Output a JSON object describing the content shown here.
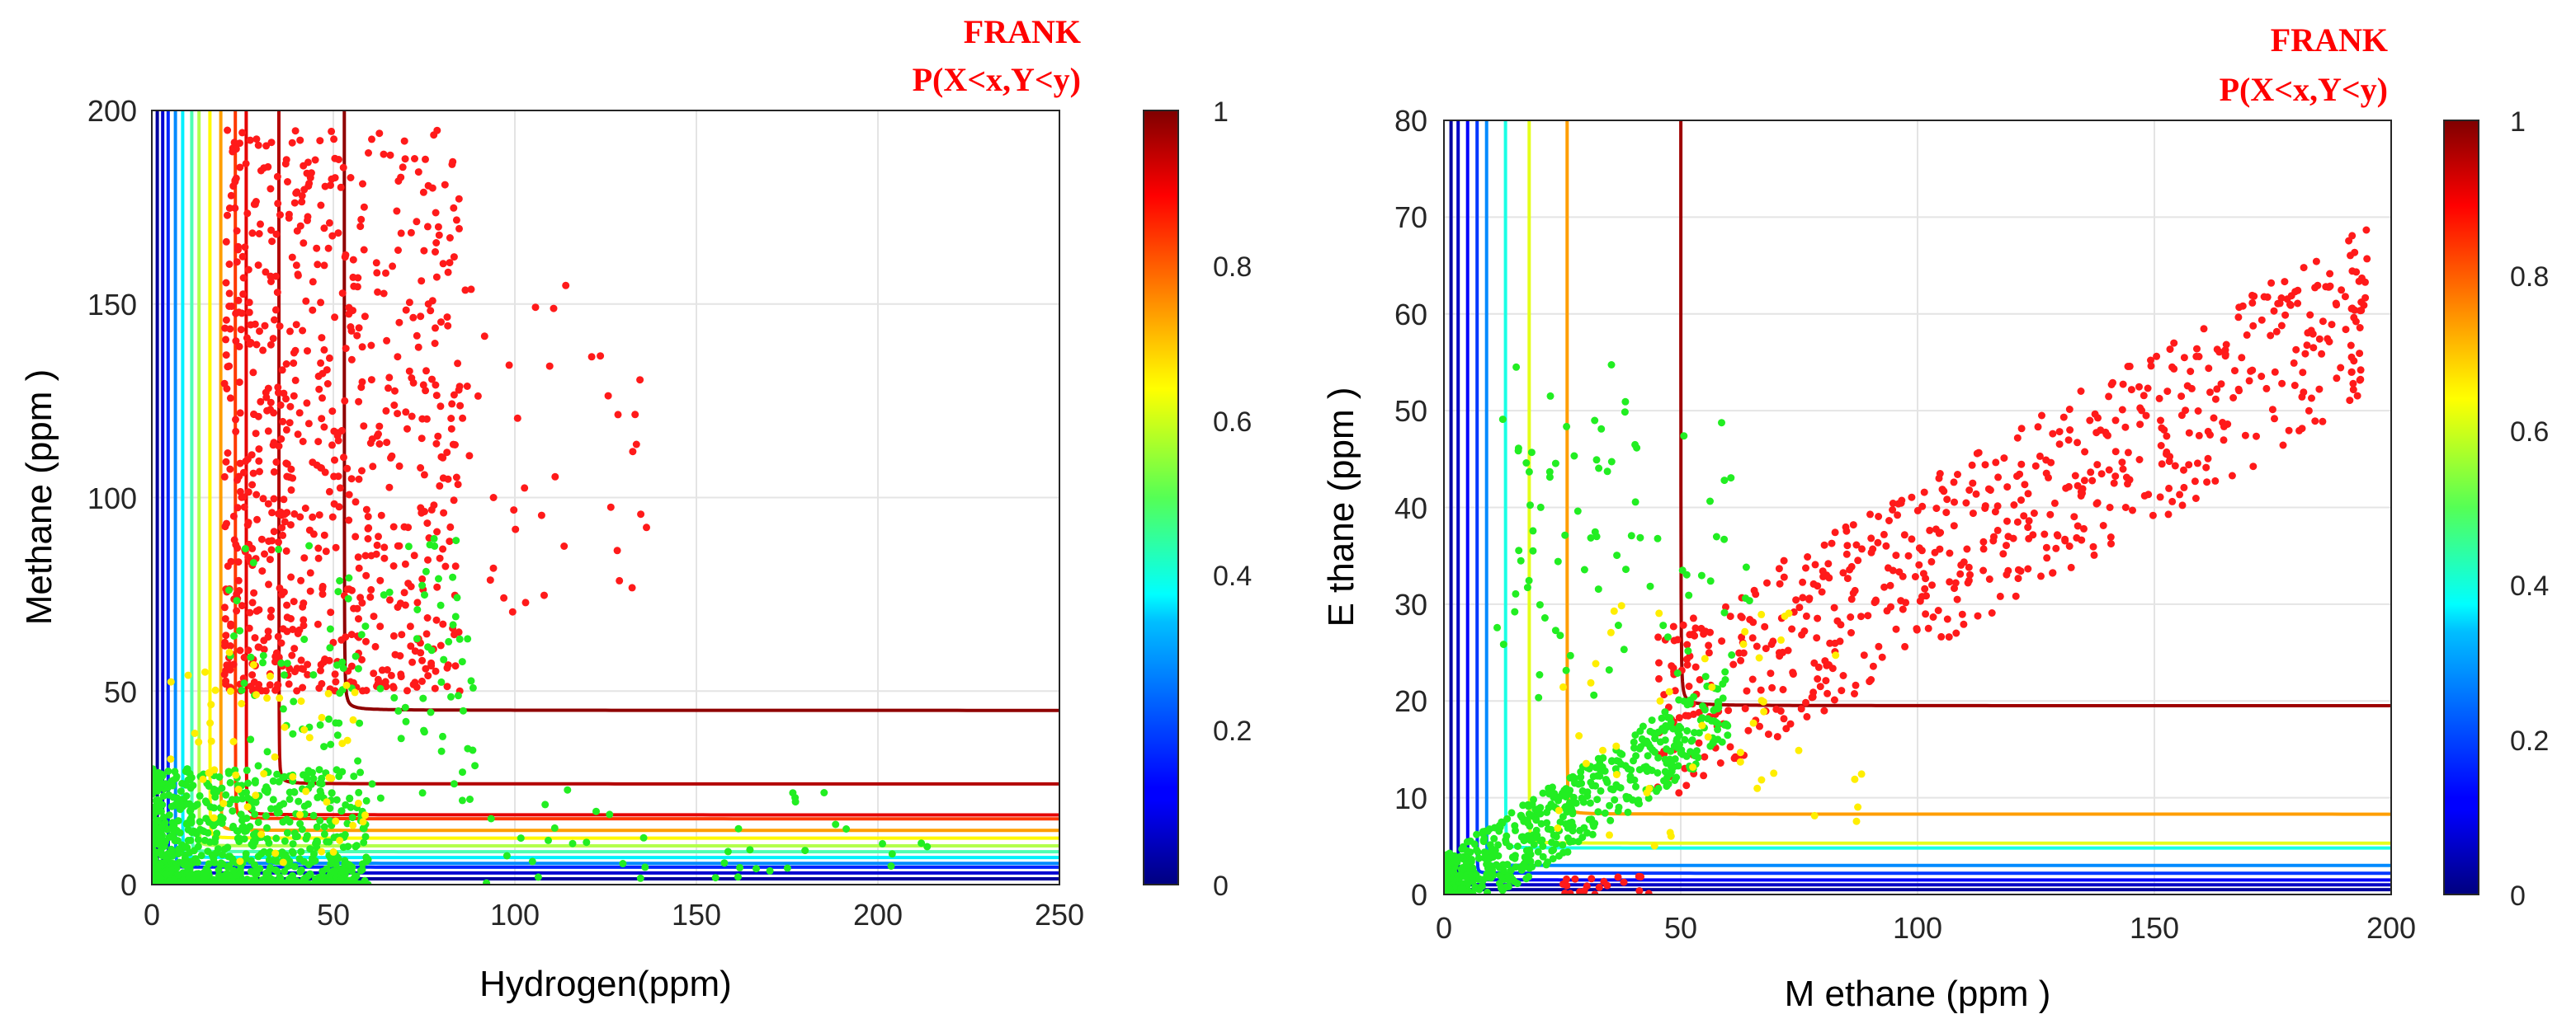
{
  "chart_data": [
    {
      "type": "scatter",
      "title": [
        "FRANK",
        "P(X<x,Y<y)"
      ],
      "xlabel": "Hydrogen(ppm)",
      "ylabel": "Methane (ppm )",
      "xlim": [
        0,
        250
      ],
      "ylim": [
        0,
        200
      ],
      "xticks": [
        "0",
        "50",
        "100",
        "150",
        "200",
        "250"
      ],
      "yticks": [
        "0",
        "50",
        "100",
        "150",
        "200"
      ],
      "grid": true,
      "colorbar": {
        "range": [
          0,
          1
        ],
        "ticks": [
          "0",
          "0.2",
          "0.4",
          "0.6",
          "0.8",
          "1"
        ],
        "colormap": "jet"
      },
      "contour_levels": [
        {
          "level": 0.03,
          "vx": 1.5,
          "hy": 1.5
        },
        {
          "level": 0.08,
          "vx": 3,
          "hy": 3
        },
        {
          "level": 0.16,
          "vx": 4.5,
          "hy": 4.5
        },
        {
          "level": 0.26,
          "vx": 6.5,
          "hy": 5.5
        },
        {
          "level": 0.36,
          "vx": 8.5,
          "hy": 7
        },
        {
          "level": 0.45,
          "vx": 11,
          "hy": 8.5
        },
        {
          "level": 0.55,
          "vx": 13,
          "hy": 10
        },
        {
          "level": 0.63,
          "vx": 16,
          "hy": 12
        },
        {
          "level": 0.72,
          "vx": 19,
          "hy": 14
        },
        {
          "level": 0.82,
          "vx": 23,
          "hy": 17
        },
        {
          "level": 0.9,
          "vx": 26,
          "hy": 18
        },
        {
          "level": 0.95,
          "vx": 35,
          "hy": 26
        },
        {
          "level": 0.985,
          "vx": 53,
          "hy": 45
        }
      ],
      "point_groups": [
        {
          "color": "#ff1a1a",
          "count": 750,
          "x": [
            20,
            85
          ],
          "y": [
            50,
            195
          ],
          "note": "red cluster"
        },
        {
          "color": "#ff1a1a",
          "count": 40,
          "x": [
            85,
            140
          ],
          "y": [
            70,
            155
          ],
          "note": "red sparse"
        },
        {
          "color": "#22ee22",
          "count": 900,
          "x": [
            0,
            60
          ],
          "y": [
            0,
            30
          ],
          "note": "green dense"
        },
        {
          "color": "#22ee22",
          "count": 120,
          "x": [
            20,
            90
          ],
          "y": [
            20,
            90
          ],
          "note": "green sparse"
        },
        {
          "color": "#22ee22",
          "count": 40,
          "x": [
            90,
            215
          ],
          "y": [
            0,
            25
          ],
          "note": "green right"
        },
        {
          "color": "#ffee00",
          "count": 60,
          "x": [
            5,
            60
          ],
          "y": [
            5,
            60
          ],
          "note": "yellow"
        }
      ]
    },
    {
      "type": "scatter",
      "title": [
        "FRANK",
        "P(X<x,Y<y)"
      ],
      "xlabel": "M ethane (ppm )",
      "ylabel": "E thane (ppm )",
      "xlim": [
        0,
        200
      ],
      "ylim": [
        0,
        80
      ],
      "xticks": [
        "0",
        "50",
        "100",
        "150",
        "200"
      ],
      "yticks": [
        "0",
        "10",
        "20",
        "30",
        "40",
        "50",
        "60",
        "70",
        "80"
      ],
      "grid": true,
      "colorbar": {
        "range": [
          0,
          1
        ],
        "ticks": [
          "0",
          "0.2",
          "0.4",
          "0.6",
          "0.8",
          "1"
        ],
        "colormap": "jet"
      },
      "contour_levels": [
        {
          "level": 0.03,
          "vx": 1.5,
          "hy": 0.5
        },
        {
          "level": 0.07,
          "vx": 3,
          "hy": 1
        },
        {
          "level": 0.12,
          "vx": 5,
          "hy": 1.5
        },
        {
          "level": 0.18,
          "vx": 7,
          "hy": 2.2
        },
        {
          "level": 0.26,
          "vx": 9,
          "hy": 3
        },
        {
          "level": 0.4,
          "vx": 13,
          "hy": 4.8
        },
        {
          "level": 0.6,
          "vx": 18,
          "hy": 5.3
        },
        {
          "level": 0.72,
          "vx": 26,
          "hy": 8.3
        },
        {
          "level": 0.97,
          "vx": 50,
          "hy": 19.5
        }
      ],
      "point_groups": [
        {
          "color": "#ff1a1a",
          "count": 650,
          "x": [
            45,
            195
          ],
          "y": [
            15,
            70
          ],
          "note": "red band"
        },
        {
          "color": "#22ee22",
          "count": 600,
          "x": [
            0,
            60
          ],
          "y": [
            0,
            25
          ],
          "note": "green dense"
        },
        {
          "color": "#22ee22",
          "count": 90,
          "x": [
            10,
            65
          ],
          "y": [
            20,
            55
          ],
          "note": "green sparse"
        },
        {
          "color": "#ffee00",
          "count": 50,
          "x": [
            20,
            90
          ],
          "y": [
            5,
            30
          ],
          "note": "yellow"
        },
        {
          "color": "#ff1a1a",
          "count": 20,
          "x": [
            25,
            45
          ],
          "y": [
            0,
            2
          ],
          "note": "red low"
        }
      ]
    }
  ]
}
